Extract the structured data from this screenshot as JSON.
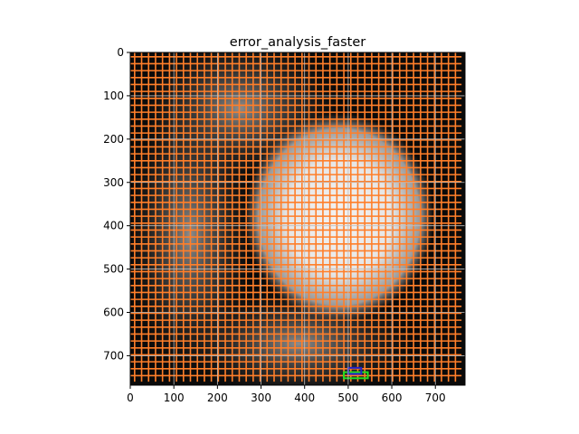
{
  "chart_data": {
    "type": "heatmap",
    "title": "error_analysis_faster",
    "xlabel": "",
    "ylabel": "",
    "xlim": [
      0,
      768
    ],
    "ylim": [
      768,
      0
    ],
    "x_ticks": [
      0,
      100,
      200,
      300,
      400,
      500,
      600,
      700
    ],
    "y_ticks": [
      0,
      100,
      200,
      300,
      400,
      500,
      600,
      700
    ],
    "grid": true,
    "image": "grayscale frame with bright central blob",
    "overlays": [
      {
        "label": "grid-cells",
        "color": "#ff7f2a"
      },
      {
        "label": "green-box",
        "color": "#22dd22",
        "x": [
          490,
          545
        ],
        "y": [
          738,
          752
        ]
      },
      {
        "label": "blue-box",
        "color": "#2020cc",
        "x": [
          500,
          530
        ],
        "y": [
          728,
          742
        ]
      }
    ]
  },
  "colors": {
    "overlay": "#ff7f2a",
    "grid": "#bfbfbf",
    "background": "#000000"
  }
}
